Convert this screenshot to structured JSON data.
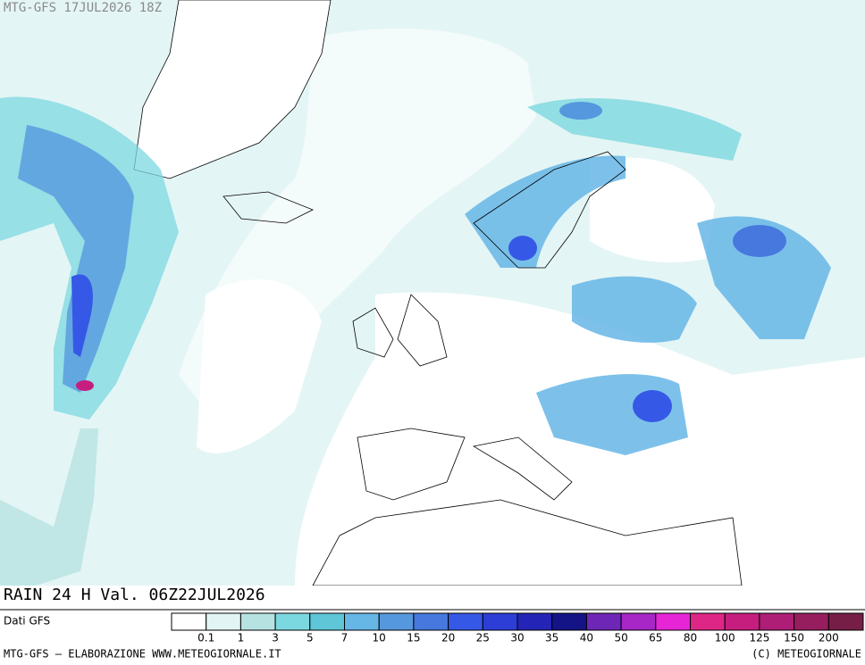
{
  "header": {
    "run": "MTG-GFS 17JUL2026 18Z"
  },
  "title": "RAIN 24 H Val. 06Z22JUL2026",
  "source": "Dati GFS",
  "legend": {
    "colors": [
      "#ffffff",
      "#e2f4f4",
      "#b6e2e2",
      "#7cd8e0",
      "#5ec6d6",
      "#66b6e6",
      "#5698de",
      "#4678de",
      "#3658e6",
      "#2c3ed6",
      "#2424b6",
      "#141486",
      "#6e26b6",
      "#a626c6",
      "#e626d6",
      "#de2686",
      "#c61e7e",
      "#ae1e76",
      "#961e5e",
      "#761e46"
    ],
    "labels": [
      "0.1",
      "1",
      "3",
      "5",
      "7",
      "10",
      "15",
      "20",
      "25",
      "30",
      "35",
      "40",
      "50",
      "65",
      "80",
      "100",
      "125",
      "150",
      "200"
    ]
  },
  "footer": {
    "left": "MTG-GFS — ELABORAZIONE WWW.METEOGIORNALE.IT",
    "right": "(C) METEOGIORNALE"
  }
}
